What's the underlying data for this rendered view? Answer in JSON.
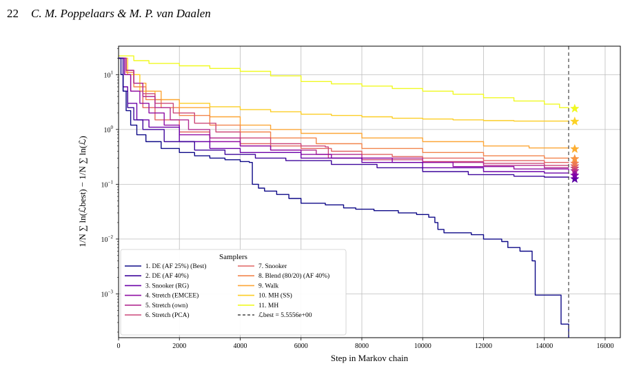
{
  "header": {
    "page_number": "22",
    "authors": "C. M. Poppelaars & M. P. van Daalen"
  },
  "chart_data": {
    "type": "line",
    "title": "",
    "xlabel": "Step in Markov chain",
    "ylabel": "1/N ∑ ln(ℒbest) − 1/N ∑ ln(ℒ)",
    "xlim": [
      0,
      16500
    ],
    "ylim_log10": [
      -3.8,
      1.52
    ],
    "yscale": "log",
    "grid": true,
    "x_ticks": [
      0,
      2000,
      4000,
      6000,
      8000,
      10000,
      12000,
      14000,
      16000
    ],
    "y_ticks": [
      {
        "value_log10": 1,
        "base": "10",
        "exp": "1"
      },
      {
        "value_log10": 0,
        "base": "10",
        "exp": "0"
      },
      {
        "value_log10": -1,
        "base": "10",
        "exp": "−1"
      },
      {
        "value_log10": -2,
        "base": "10",
        "exp": "−2"
      },
      {
        "value_log10": -3,
        "base": "10",
        "exp": "−3"
      }
    ],
    "vline": {
      "x": 14800,
      "style": "dashed",
      "color": "#444444"
    },
    "legend": {
      "title": "Samplers",
      "position": "lower-left",
      "entries": [
        "1. DE (AF 25%) (Best)",
        "2. DE (AF 40%)",
        "3. Snooker (RG)",
        "4. Stretch (EMCEE)",
        "5. Stretch (own)",
        "6. Stretch (PCA)",
        "7. Snooker",
        "8. Blend (80/20) (AF 40%)",
        "9. Walk",
        "10. MH (SS)",
        "11. MH"
      ],
      "best_label": "ℒbest = 5.5556e+00"
    },
    "series": [
      {
        "name": "1. DE (AF 25%) (Best)",
        "color": "#0d0887",
        "marker": "#3b049a",
        "points": [
          [
            0,
            20
          ],
          [
            80,
            10
          ],
          [
            150,
            5
          ],
          [
            250,
            2.2
          ],
          [
            400,
            1.2
          ],
          [
            600,
            0.8
          ],
          [
            900,
            0.6
          ],
          [
            1400,
            0.45
          ],
          [
            2000,
            0.38
          ],
          [
            2500,
            0.33
          ],
          [
            3000,
            0.3
          ],
          [
            3500,
            0.28
          ],
          [
            4000,
            0.26
          ],
          [
            4300,
            0.25
          ],
          [
            4400,
            0.1
          ],
          [
            4600,
            0.085
          ],
          [
            4800,
            0.075
          ],
          [
            5200,
            0.065
          ],
          [
            5600,
            0.055
          ],
          [
            6000,
            0.045
          ],
          [
            6800,
            0.042
          ],
          [
            7400,
            0.037
          ],
          [
            7800,
            0.035
          ],
          [
            8400,
            0.033
          ],
          [
            9200,
            0.03
          ],
          [
            9800,
            0.028
          ],
          [
            10200,
            0.025
          ],
          [
            10400,
            0.02
          ],
          [
            10500,
            0.015
          ],
          [
            10700,
            0.013
          ],
          [
            11600,
            0.012
          ],
          [
            12000,
            0.01
          ],
          [
            12600,
            0.009
          ],
          [
            12800,
            0.007
          ],
          [
            13200,
            0.006
          ],
          [
            13600,
            0.004
          ],
          [
            13700,
            0.00095
          ],
          [
            14500,
            0.00095
          ],
          [
            14550,
            0.00028
          ],
          [
            14800,
            0.00028
          ],
          [
            14800,
            0.00016
          ]
        ]
      },
      {
        "name": "2. DE (AF 40%)",
        "color": "#3c049b",
        "marker": "#5c01a6",
        "star": 0.125,
        "points": [
          [
            0,
            20
          ],
          [
            150,
            5
          ],
          [
            300,
            2.5
          ],
          [
            500,
            1.5
          ],
          [
            800,
            1.0
          ],
          [
            1500,
            0.6
          ],
          [
            2500,
            0.42
          ],
          [
            3500,
            0.35
          ],
          [
            4500,
            0.3
          ],
          [
            5500,
            0.27
          ],
          [
            7000,
            0.23
          ],
          [
            8500,
            0.2
          ],
          [
            10000,
            0.17
          ],
          [
            11500,
            0.15
          ],
          [
            13000,
            0.14
          ],
          [
            14000,
            0.135
          ],
          [
            14800,
            0.13
          ]
        ]
      },
      {
        "name": "3. Snooker (RG)",
        "color": "#6a00a8",
        "marker": "#7e03a8",
        "star": 0.145,
        "points": [
          [
            0,
            20
          ],
          [
            150,
            6
          ],
          [
            300,
            3
          ],
          [
            600,
            1.5
          ],
          [
            1000,
            1.1
          ],
          [
            2000,
            0.6
          ],
          [
            3000,
            0.45
          ],
          [
            4000,
            0.38
          ],
          [
            6000,
            0.3
          ],
          [
            8000,
            0.25
          ],
          [
            10000,
            0.2
          ],
          [
            12000,
            0.17
          ],
          [
            14000,
            0.16
          ],
          [
            14800,
            0.155
          ]
        ]
      },
      {
        "name": "4. Stretch (EMCEE)",
        "color": "#8f0da4",
        "marker": "#9c179e",
        "star": 0.175,
        "points": [
          [
            0,
            20
          ],
          [
            200,
            10
          ],
          [
            400,
            5
          ],
          [
            700,
            3
          ],
          [
            1000,
            2
          ],
          [
            1500,
            1.2
          ],
          [
            2000,
            0.8
          ],
          [
            3000,
            0.6
          ],
          [
            4000,
            0.5
          ],
          [
            5000,
            0.42
          ],
          [
            6000,
            0.35
          ],
          [
            7000,
            0.3
          ],
          [
            9000,
            0.25
          ],
          [
            11000,
            0.21
          ],
          [
            13000,
            0.19
          ],
          [
            14800,
            0.18
          ]
        ]
      },
      {
        "name": "5. Stretch (own)",
        "color": "#b12a90",
        "marker": "#bd3786",
        "star": 0.195,
        "points": [
          [
            0,
            20
          ],
          [
            250,
            12
          ],
          [
            500,
            7
          ],
          [
            800,
            4
          ],
          [
            1200,
            2.5
          ],
          [
            1700,
            1.5
          ],
          [
            2300,
            1.0
          ],
          [
            3000,
            0.7
          ],
          [
            4000,
            0.5
          ],
          [
            5000,
            0.42
          ],
          [
            6500,
            0.35
          ],
          [
            8000,
            0.3
          ],
          [
            10000,
            0.25
          ],
          [
            12000,
            0.22
          ],
          [
            14000,
            0.2
          ],
          [
            14800,
            0.2
          ]
        ]
      },
      {
        "name": "6. Stretch (PCA)",
        "color": "#cc4778",
        "marker": "#d8576b",
        "star": 0.215,
        "points": [
          [
            0,
            20
          ],
          [
            250,
            12
          ],
          [
            500,
            7
          ],
          [
            800,
            4.5
          ],
          [
            1200,
            3
          ],
          [
            1800,
            2
          ],
          [
            2500,
            1.3
          ],
          [
            3200,
            0.9
          ],
          [
            4000,
            0.7
          ],
          [
            5000,
            0.55
          ],
          [
            6000,
            0.5
          ],
          [
            6800,
            0.48
          ],
          [
            6900,
            0.3
          ],
          [
            8000,
            0.28
          ],
          [
            10000,
            0.26
          ],
          [
            12000,
            0.24
          ],
          [
            14000,
            0.22
          ],
          [
            14800,
            0.22
          ]
        ]
      },
      {
        "name": "7. Snooker",
        "color": "#e16462",
        "marker": "#ed7953",
        "star": 0.24,
        "points": [
          [
            0,
            20
          ],
          [
            200,
            10
          ],
          [
            400,
            5
          ],
          [
            800,
            2.5
          ],
          [
            1200,
            1.5
          ],
          [
            2000,
            0.9
          ],
          [
            3000,
            0.7
          ],
          [
            4000,
            0.55
          ],
          [
            5000,
            0.5
          ],
          [
            6000,
            0.45
          ],
          [
            7000,
            0.4
          ],
          [
            8000,
            0.35
          ],
          [
            9000,
            0.32
          ],
          [
            10000,
            0.3
          ],
          [
            12000,
            0.27
          ],
          [
            14000,
            0.25
          ],
          [
            14800,
            0.245
          ]
        ]
      },
      {
        "name": "8. Blend (80/20) (AF 40%)",
        "color": "#f2844b",
        "marker": "#f89441",
        "star": 0.29,
        "points": [
          [
            0,
            20
          ],
          [
            250,
            11
          ],
          [
            500,
            6
          ],
          [
            900,
            3.5
          ],
          [
            1400,
            2.5
          ],
          [
            2000,
            1.8
          ],
          [
            3000,
            1.2
          ],
          [
            4000,
            0.9
          ],
          [
            5000,
            0.7
          ],
          [
            6500,
            0.55
          ],
          [
            8000,
            0.45
          ],
          [
            10000,
            0.38
          ],
          [
            12000,
            0.33
          ],
          [
            14000,
            0.3
          ],
          [
            14800,
            0.295
          ]
        ]
      },
      {
        "name": "9. Walk",
        "color": "#fca636",
        "marker": "#fdaf31",
        "star": 0.44,
        "points": [
          [
            0,
            20
          ],
          [
            250,
            12
          ],
          [
            500,
            7
          ],
          [
            900,
            5
          ],
          [
            1400,
            3.5
          ],
          [
            2000,
            2.5
          ],
          [
            3000,
            1.7
          ],
          [
            4000,
            1.2
          ],
          [
            5000,
            1.0
          ],
          [
            6000,
            0.85
          ],
          [
            8000,
            0.7
          ],
          [
            10000,
            0.6
          ],
          [
            12000,
            0.5
          ],
          [
            13500,
            0.46
          ],
          [
            14800,
            0.45
          ]
        ]
      },
      {
        "name": "10. MH (SS)",
        "color": "#fcce25",
        "marker": "#fcd225",
        "star": 1.4,
        "points": [
          [
            0,
            20
          ],
          [
            300,
            10
          ],
          [
            700,
            5
          ],
          [
            1200,
            3.5
          ],
          [
            2000,
            3
          ],
          [
            3000,
            2.6
          ],
          [
            4000,
            2.3
          ],
          [
            5000,
            2.1
          ],
          [
            6000,
            1.9
          ],
          [
            7000,
            1.8
          ],
          [
            8000,
            1.7
          ],
          [
            9000,
            1.6
          ],
          [
            10000,
            1.55
          ],
          [
            11000,
            1.5
          ],
          [
            12000,
            1.45
          ],
          [
            13000,
            1.42
          ],
          [
            14800,
            1.4
          ]
        ]
      },
      {
        "name": "11. MH",
        "color": "#f0f921",
        "marker": "#f0f921",
        "star": 2.4,
        "points": [
          [
            0,
            22
          ],
          [
            500,
            18
          ],
          [
            1000,
            16
          ],
          [
            2000,
            14.5
          ],
          [
            3000,
            13
          ],
          [
            4000,
            11.5
          ],
          [
            5000,
            9.5
          ],
          [
            6000,
            7.5
          ],
          [
            7000,
            6.8
          ],
          [
            8000,
            6.2
          ],
          [
            9000,
            5.6
          ],
          [
            10000,
            5.0
          ],
          [
            11000,
            4.4
          ],
          [
            12000,
            3.8
          ],
          [
            13000,
            3.3
          ],
          [
            14000,
            2.9
          ],
          [
            14500,
            2.5
          ],
          [
            14800,
            2.4
          ]
        ]
      }
    ]
  }
}
